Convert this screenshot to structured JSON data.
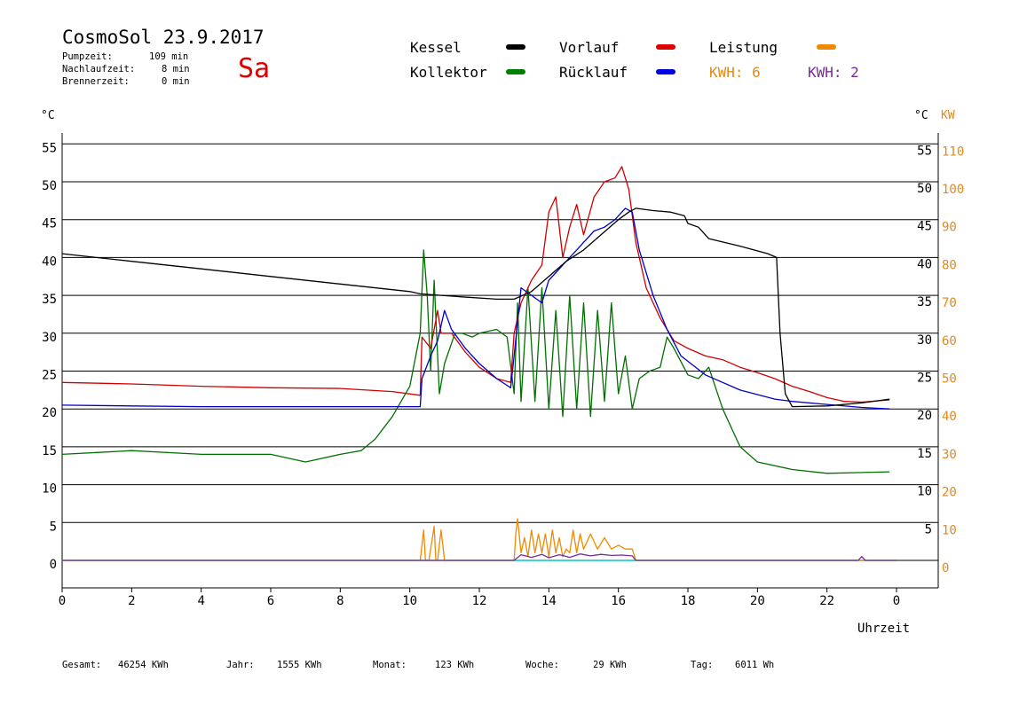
{
  "header": {
    "title": "CosmoSol 23.9.2017",
    "day": "Sa",
    "pumpzeit_label": "Pumpzeit:",
    "pumpzeit_value": "109 min",
    "nachlauf_label": "Nachlaufzeit:",
    "nachlauf_value": "8 min",
    "brenner_label": "Brennerzeit:",
    "brenner_value": "0 min"
  },
  "legend": {
    "kessel": "Kessel",
    "vorlauf": "Vorlauf",
    "leistung": "Leistung",
    "kollektor": "Kollektor",
    "ruecklauf": "Rücklauf",
    "kwh_orange": "KWH: 6",
    "kwh_purple": "KWH: 2"
  },
  "axes": {
    "left_unit": "°C",
    "right_unit": "°C",
    "right_unit2": "KW",
    "x_label": "Uhrzeit"
  },
  "footer": {
    "gesamt_label": "Gesamt:",
    "gesamt_value": "46254 KWh",
    "jahr_label": "Jahr:",
    "jahr_value": "1555 KWh",
    "monat_label": "Monat:",
    "monat_value": "123 KWh",
    "woche_label": "Woche:",
    "woche_value": "29 KWh",
    "tag_label": "Tag:",
    "tag_value": "6011 Wh"
  },
  "colors": {
    "kessel": "#000000",
    "kollektor": "#007000",
    "vorlauf": "#d00000",
    "ruecklauf": "#0000c8",
    "leistung": "#f08a00",
    "kwh": "#7a2a9a",
    "baseline": "#00c8c8"
  },
  "chart_data": {
    "type": "line",
    "title": "CosmoSol 23.9.2017",
    "xlabel": "Uhrzeit",
    "ylabel": "°C",
    "y2label": "KW",
    "xlim": [
      0,
      24
    ],
    "ylim": [
      -3,
      55
    ],
    "y2lim": [
      -6,
      110
    ],
    "x_ticks": [
      "0",
      "2",
      "4",
      "6",
      "8",
      "10",
      "12",
      "14",
      "16",
      "18",
      "20",
      "22",
      "0"
    ],
    "y_left_ticks": [
      0,
      5,
      10,
      15,
      20,
      25,
      30,
      35,
      40,
      45,
      50,
      55
    ],
    "y_right_ticks": [
      5,
      10,
      15,
      20,
      25,
      30,
      35,
      40,
      45,
      50,
      55
    ],
    "y2_ticks": [
      0,
      10,
      20,
      30,
      40,
      50,
      60,
      70,
      80,
      90,
      100,
      110
    ],
    "grid": true,
    "series": [
      {
        "name": "Kessel",
        "x": [
          0,
          2,
          4,
          6,
          8,
          10,
          10.3,
          11.5,
          12.5,
          13,
          13.5,
          14,
          14.5,
          15,
          15.5,
          16,
          16.3,
          16.5,
          17,
          17.5,
          17.9,
          18,
          18.3,
          18.6,
          19.5,
          20.3,
          20.55,
          20.65,
          20.8,
          21,
          22,
          23,
          23.8
        ],
        "y": [
          40.5,
          39.5,
          38.5,
          37.5,
          36.5,
          35.5,
          35.2,
          34.8,
          34.5,
          34.5,
          35.5,
          37.5,
          39.5,
          41,
          43,
          45,
          46,
          46.5,
          46.2,
          46,
          45.5,
          44.5,
          44,
          42.5,
          41.5,
          40.5,
          40,
          30,
          22,
          20.3,
          20.4,
          20.8,
          21.3
        ]
      },
      {
        "name": "Kollektor",
        "x": [
          0,
          2,
          4,
          6,
          7,
          8,
          8.6,
          9,
          9.5,
          10,
          10.3,
          10.4,
          10.5,
          10.6,
          10.7,
          10.85,
          11,
          11.3,
          11.5,
          11.8,
          12,
          12.5,
          12.8,
          13,
          13.1,
          13.2,
          13.4,
          13.6,
          13.8,
          14,
          14.2,
          14.4,
          14.6,
          14.8,
          15,
          15.2,
          15.4,
          15.6,
          15.8,
          16,
          16.2,
          16.4,
          16.6,
          16.9,
          17.2,
          17.4,
          17.6,
          18,
          18.3,
          18.6,
          19,
          19.5,
          20,
          21,
          22,
          23,
          23.8
        ],
        "y": [
          14,
          14.5,
          14,
          14,
          13,
          14,
          14.5,
          16,
          19,
          23,
          30,
          41,
          35,
          25,
          37,
          22,
          26,
          30,
          30,
          29.5,
          30,
          30.5,
          29.5,
          22,
          34,
          21,
          36,
          21,
          36,
          20,
          33,
          19,
          35,
          20,
          34,
          19,
          33,
          21,
          34,
          22,
          27,
          20,
          24,
          25,
          25.5,
          29.5,
          28,
          24.5,
          24,
          25.5,
          20,
          15,
          13,
          12,
          11.5,
          11.6,
          11.7
        ]
      },
      {
        "name": "Vorlauf",
        "x": [
          0,
          2,
          4,
          6,
          8,
          9.5,
          10.3,
          10.35,
          10.6,
          10.8,
          10.9,
          11.2,
          11.6,
          12,
          12.5,
          12.9,
          13,
          13.2,
          13.5,
          13.8,
          14,
          14.2,
          14.4,
          14.6,
          14.8,
          15,
          15.3,
          15.6,
          15.9,
          16.1,
          16.3,
          16.5,
          16.8,
          17.2,
          17.6,
          18,
          18.5,
          19,
          19.5,
          20,
          20.5,
          21,
          21.5,
          22,
          22.5,
          23,
          23.8
        ],
        "y": [
          23.5,
          23.3,
          23,
          22.8,
          22.7,
          22.3,
          21.8,
          29.5,
          28,
          33,
          30,
          30,
          27.5,
          25.5,
          24,
          23.5,
          30,
          34,
          37,
          39,
          46,
          48,
          40,
          44,
          47,
          43,
          48,
          50,
          50.5,
          52,
          49,
          42,
          36,
          32,
          29,
          28,
          27,
          26.5,
          25.5,
          24.8,
          24,
          23,
          22.3,
          21.5,
          21,
          20.9,
          21.2
        ]
      },
      {
        "name": "Rücklauf",
        "x": [
          0,
          2,
          4,
          6,
          8,
          9.5,
          10.3,
          10.35,
          10.6,
          10.8,
          11,
          11.2,
          11.6,
          12,
          12.5,
          12.9,
          13,
          13.2,
          13.5,
          13.8,
          14,
          14.2,
          14.4,
          14.6,
          14.8,
          15,
          15.3,
          15.6,
          15.9,
          16.2,
          16.4,
          16.6,
          17,
          17.4,
          17.8,
          18.5,
          19.5,
          20.5,
          21,
          22,
          23,
          23.8
        ],
        "y": [
          20.5,
          20.4,
          20.3,
          20.3,
          20.3,
          20.3,
          20.3,
          24,
          27,
          29,
          33,
          30.5,
          28,
          26,
          24,
          22.8,
          27,
          36,
          35,
          34,
          37,
          38,
          39,
          40,
          41,
          42,
          43.5,
          44,
          45,
          46.5,
          46,
          41,
          35,
          30.5,
          27,
          24.5,
          22.5,
          21.3,
          21,
          20.6,
          20.2,
          20
        ]
      },
      {
        "name": "Leistung",
        "axis": "y2",
        "x": [
          0,
          10.3,
          10.4,
          10.45,
          10.55,
          10.7,
          10.75,
          10.8,
          10.9,
          11,
          11.05,
          11.1,
          13,
          13.05,
          13.1,
          13.2,
          13.3,
          13.4,
          13.5,
          13.6,
          13.7,
          13.8,
          13.9,
          14,
          14.1,
          14.2,
          14.3,
          14.4,
          14.5,
          14.6,
          14.7,
          14.8,
          14.9,
          15,
          15.2,
          15.4,
          15.6,
          15.8,
          16,
          16.2,
          16.4,
          16.5,
          24
        ],
        "y": [
          0,
          0,
          8,
          0,
          0,
          9,
          0,
          0,
          8,
          0,
          0,
          0,
          0,
          7,
          11,
          2,
          6,
          1,
          8,
          2,
          7,
          2,
          7,
          1,
          8,
          2,
          6,
          1,
          3,
          2,
          8,
          2,
          7,
          3,
          7,
          3,
          6,
          3,
          4,
          3,
          3,
          0,
          0
        ]
      },
      {
        "name": "KWH",
        "axis": "y2",
        "x": [
          0,
          13,
          13.2,
          13.5,
          13.8,
          14,
          14.3,
          14.6,
          14.9,
          15.2,
          15.5,
          15.8,
          16.1,
          16.4,
          16.5,
          22.9,
          23,
          23.1,
          24
        ],
        "y": [
          0,
          0,
          1.5,
          0.8,
          1.6,
          0.7,
          1.5,
          0.8,
          1.7,
          1.2,
          1.6,
          1.3,
          1.4,
          1.2,
          0,
          0,
          1,
          0,
          0
        ]
      }
    ]
  }
}
